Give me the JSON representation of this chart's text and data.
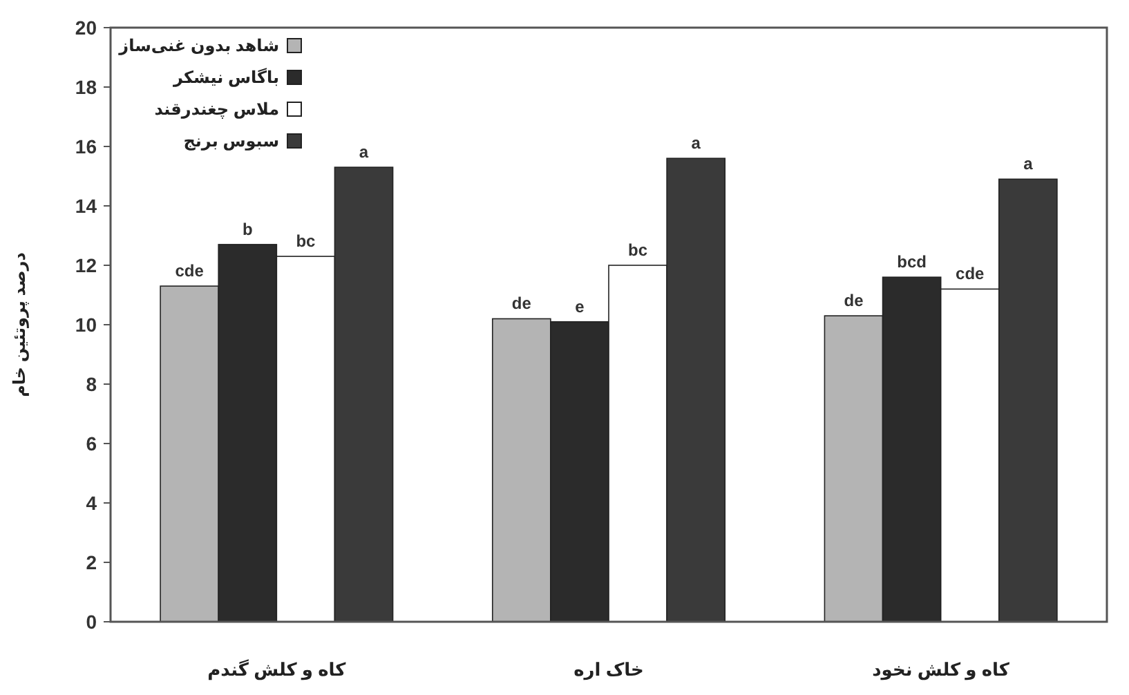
{
  "chart_data": {
    "type": "bar",
    "ylabel": "درصد پروتئین خام",
    "categories": [
      "کاه و کلش گندم",
      "خاک اره",
      "کاه و کلش نخود"
    ],
    "series": [
      {
        "name": "شاهد بدون غنی‌ساز",
        "color": "#b4b4b4",
        "values": [
          11.3,
          10.2,
          10.3
        ],
        "value_labels": [
          "cde",
          "de",
          "de"
        ]
      },
      {
        "name": "باگاس نیشکر",
        "color": "#2b2b2b",
        "values": [
          12.7,
          10.1,
          11.6
        ],
        "value_labels": [
          "b",
          "e",
          "bcd"
        ]
      },
      {
        "name": "ملاس چغندرقند",
        "color": "#ffffff",
        "values": [
          12.3,
          12.0,
          11.2
        ],
        "value_labels": [
          "bc",
          "bc",
          "cde"
        ]
      },
      {
        "name": "سبوس برنج",
        "color": "#3a3a3a",
        "values": [
          15.3,
          15.6,
          14.9
        ],
        "value_labels": [
          "a",
          "a",
          "a"
        ]
      }
    ],
    "ylim": [
      0,
      20
    ],
    "yticks": [
      0,
      2,
      4,
      6,
      8,
      10,
      12,
      14,
      16,
      18,
      20
    ],
    "grid": false,
    "legend": "top left"
  }
}
